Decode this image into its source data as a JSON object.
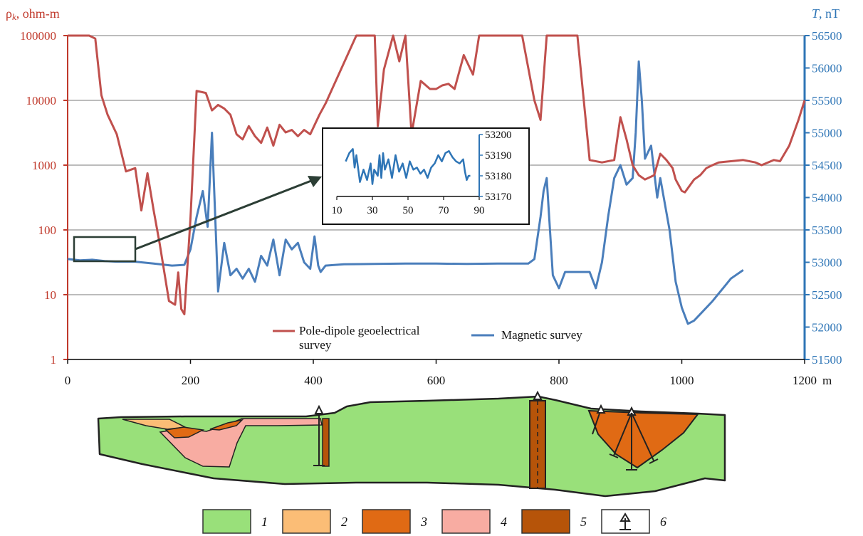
{
  "chart_data": {
    "type": "line",
    "left_axis": {
      "label_symbol": "ρ",
      "label_subscript": "k",
      "label_rest": ", ohm-m",
      "scale": "log",
      "ticks": [
        "1",
        "10",
        "100",
        "1000",
        "10000",
        "100000"
      ],
      "color": "#c0504d"
    },
    "right_axis": {
      "label_symbol": "T",
      "label_rest": ", nT",
      "range": [
        51500,
        56500
      ],
      "ticks": [
        "51500",
        "52000",
        "52500",
        "53000",
        "53500",
        "54000",
        "54500",
        "55000",
        "55500",
        "56000",
        "56500"
      ],
      "color": "#4a7ebb"
    },
    "x_axis": {
      "range": [
        0,
        1200
      ],
      "ticks": [
        "0",
        "200",
        "400",
        "600",
        "800",
        "1000",
        "1200"
      ],
      "unit": "m"
    },
    "legend": {
      "placement": "bottom-center",
      "items": [
        {
          "label_line1": "Pole-dipole geoelectrical",
          "label_line2": "survey",
          "color": "#c0504d"
        },
        {
          "label_line1": "Magnetic survey",
          "label_line2": "",
          "color": "#4a7ebb"
        }
      ]
    },
    "grid": true,
    "series": [
      {
        "axis": "left",
        "x": [
          0,
          35,
          45,
          55,
          65,
          80,
          95,
          110,
          120,
          130,
          140,
          150,
          165,
          175,
          180,
          185,
          190,
          200,
          210,
          225,
          235,
          245,
          255,
          265,
          275,
          285,
          295,
          305,
          315,
          325,
          335,
          345,
          355,
          365,
          375,
          385,
          395,
          410,
          420,
          470,
          490,
          500,
          505,
          515,
          530,
          540,
          550,
          560,
          575,
          590,
          600,
          610,
          620,
          630,
          645,
          660,
          670,
          680,
          700,
          740,
          760,
          770,
          780,
          800,
          830,
          850,
          870,
          890,
          900,
          910,
          920,
          930,
          940,
          955,
          965,
          975,
          985,
          990,
          1000,
          1005,
          1020,
          1030,
          1040,
          1050,
          1060,
          1080,
          1100,
          1120,
          1130,
          1150,
          1160,
          1175,
          1190,
          1200
        ],
        "y": [
          100000,
          100000,
          90000,
          12000,
          6000,
          3000,
          800,
          900,
          200,
          750,
          200,
          60,
          8,
          7,
          22,
          6,
          5,
          150,
          14000,
          13000,
          7000,
          8500,
          7500,
          6000,
          3000,
          2500,
          4000,
          2800,
          2200,
          3800,
          2000,
          4200,
          3200,
          3500,
          2800,
          3500,
          3000,
          6000,
          9000,
          100000,
          100000,
          100000,
          4000,
          30000,
          100000,
          40000,
          100000,
          3000,
          20000,
          15000,
          15000,
          17000,
          18000,
          15000,
          50000,
          25000,
          100000,
          100000,
          100000,
          100000,
          10000,
          5000,
          100000,
          100000,
          100000,
          1200,
          1100,
          1200,
          5500,
          2500,
          1000,
          700,
          600,
          700,
          1500,
          1200,
          900,
          600,
          400,
          380,
          600,
          700,
          900,
          1000,
          1100,
          1150,
          1200,
          1100,
          1000,
          1200,
          1150,
          2000,
          5000,
          10000
        ]
      },
      {
        "axis": "right",
        "x": [
          0,
          20,
          40,
          60,
          80,
          110,
          140,
          170,
          190,
          200,
          210,
          220,
          228,
          235,
          245,
          255,
          265,
          275,
          285,
          295,
          305,
          315,
          325,
          335,
          345,
          355,
          365,
          375,
          385,
          395,
          402,
          408,
          412,
          420,
          450,
          500,
          550,
          600,
          650,
          700,
          750,
          760,
          770,
          775,
          780,
          790,
          800,
          810,
          850,
          860,
          870,
          880,
          890,
          900,
          910,
          920,
          925,
          930,
          935,
          940,
          950,
          960,
          965,
          980,
          990,
          1000,
          1010,
          1020,
          1030,
          1050,
          1080,
          1100
        ],
        "y": [
          53050,
          53030,
          53040,
          53020,
          53010,
          53010,
          52980,
          52950,
          52960,
          53200,
          53700,
          54100,
          53550,
          55000,
          52550,
          53300,
          52800,
          52900,
          52750,
          52900,
          52700,
          53100,
          52950,
          53350,
          52800,
          53350,
          53200,
          53300,
          53000,
          52900,
          53400,
          52950,
          52850,
          52950,
          52970,
          52975,
          52980,
          52980,
          52975,
          52980,
          52980,
          53050,
          53700,
          54100,
          54300,
          52800,
          52600,
          52850,
          52850,
          52600,
          53000,
          53700,
          54300,
          54500,
          54200,
          54300,
          55000,
          56100,
          55500,
          54600,
          54800,
          54000,
          54300,
          53500,
          52700,
          52300,
          52050,
          52100,
          52200,
          52400,
          52750,
          52880
        ]
      }
    ],
    "inset": {
      "ylim": [
        53170,
        53200
      ],
      "yticks": [
        "53170",
        "53180",
        "53190",
        "53200"
      ],
      "xticks": [
        "10",
        "30",
        "50",
        "70",
        "90"
      ],
      "x": [
        15,
        17,
        19,
        20,
        21,
        23,
        25,
        27,
        29,
        30,
        31,
        33,
        34,
        35,
        36,
        37,
        39,
        41,
        43,
        45,
        47,
        49,
        51,
        53,
        55,
        57,
        59,
        61,
        63,
        65,
        67,
        69,
        71,
        73,
        75,
        77,
        79,
        81,
        82,
        83,
        84,
        85
      ],
      "y": [
        53187,
        53191,
        53193,
        53184,
        53190,
        53177,
        53183,
        53178,
        53186,
        53176,
        53183,
        53180,
        53190,
        53179,
        53191,
        53183,
        53188,
        53179,
        53190,
        53182,
        53186,
        53179,
        53187,
        53183,
        53184,
        53181,
        53183,
        53179,
        53184,
        53186,
        53190,
        53187,
        53191,
        53192,
        53189,
        53187,
        53186,
        53188,
        53182,
        53178,
        53180,
        53180
      ]
    },
    "cross_section": {
      "legend": [
        {
          "label": "1",
          "color": "#99e07a"
        },
        {
          "label": "2",
          "color": "#fbbd76"
        },
        {
          "label": "3",
          "color": "#e06a14"
        },
        {
          "label": "4",
          "color": "#f8aca2"
        },
        {
          "label": "5",
          "color": "#b65409"
        },
        {
          "label": "6",
          "color": "#ffffff"
        }
      ]
    }
  }
}
